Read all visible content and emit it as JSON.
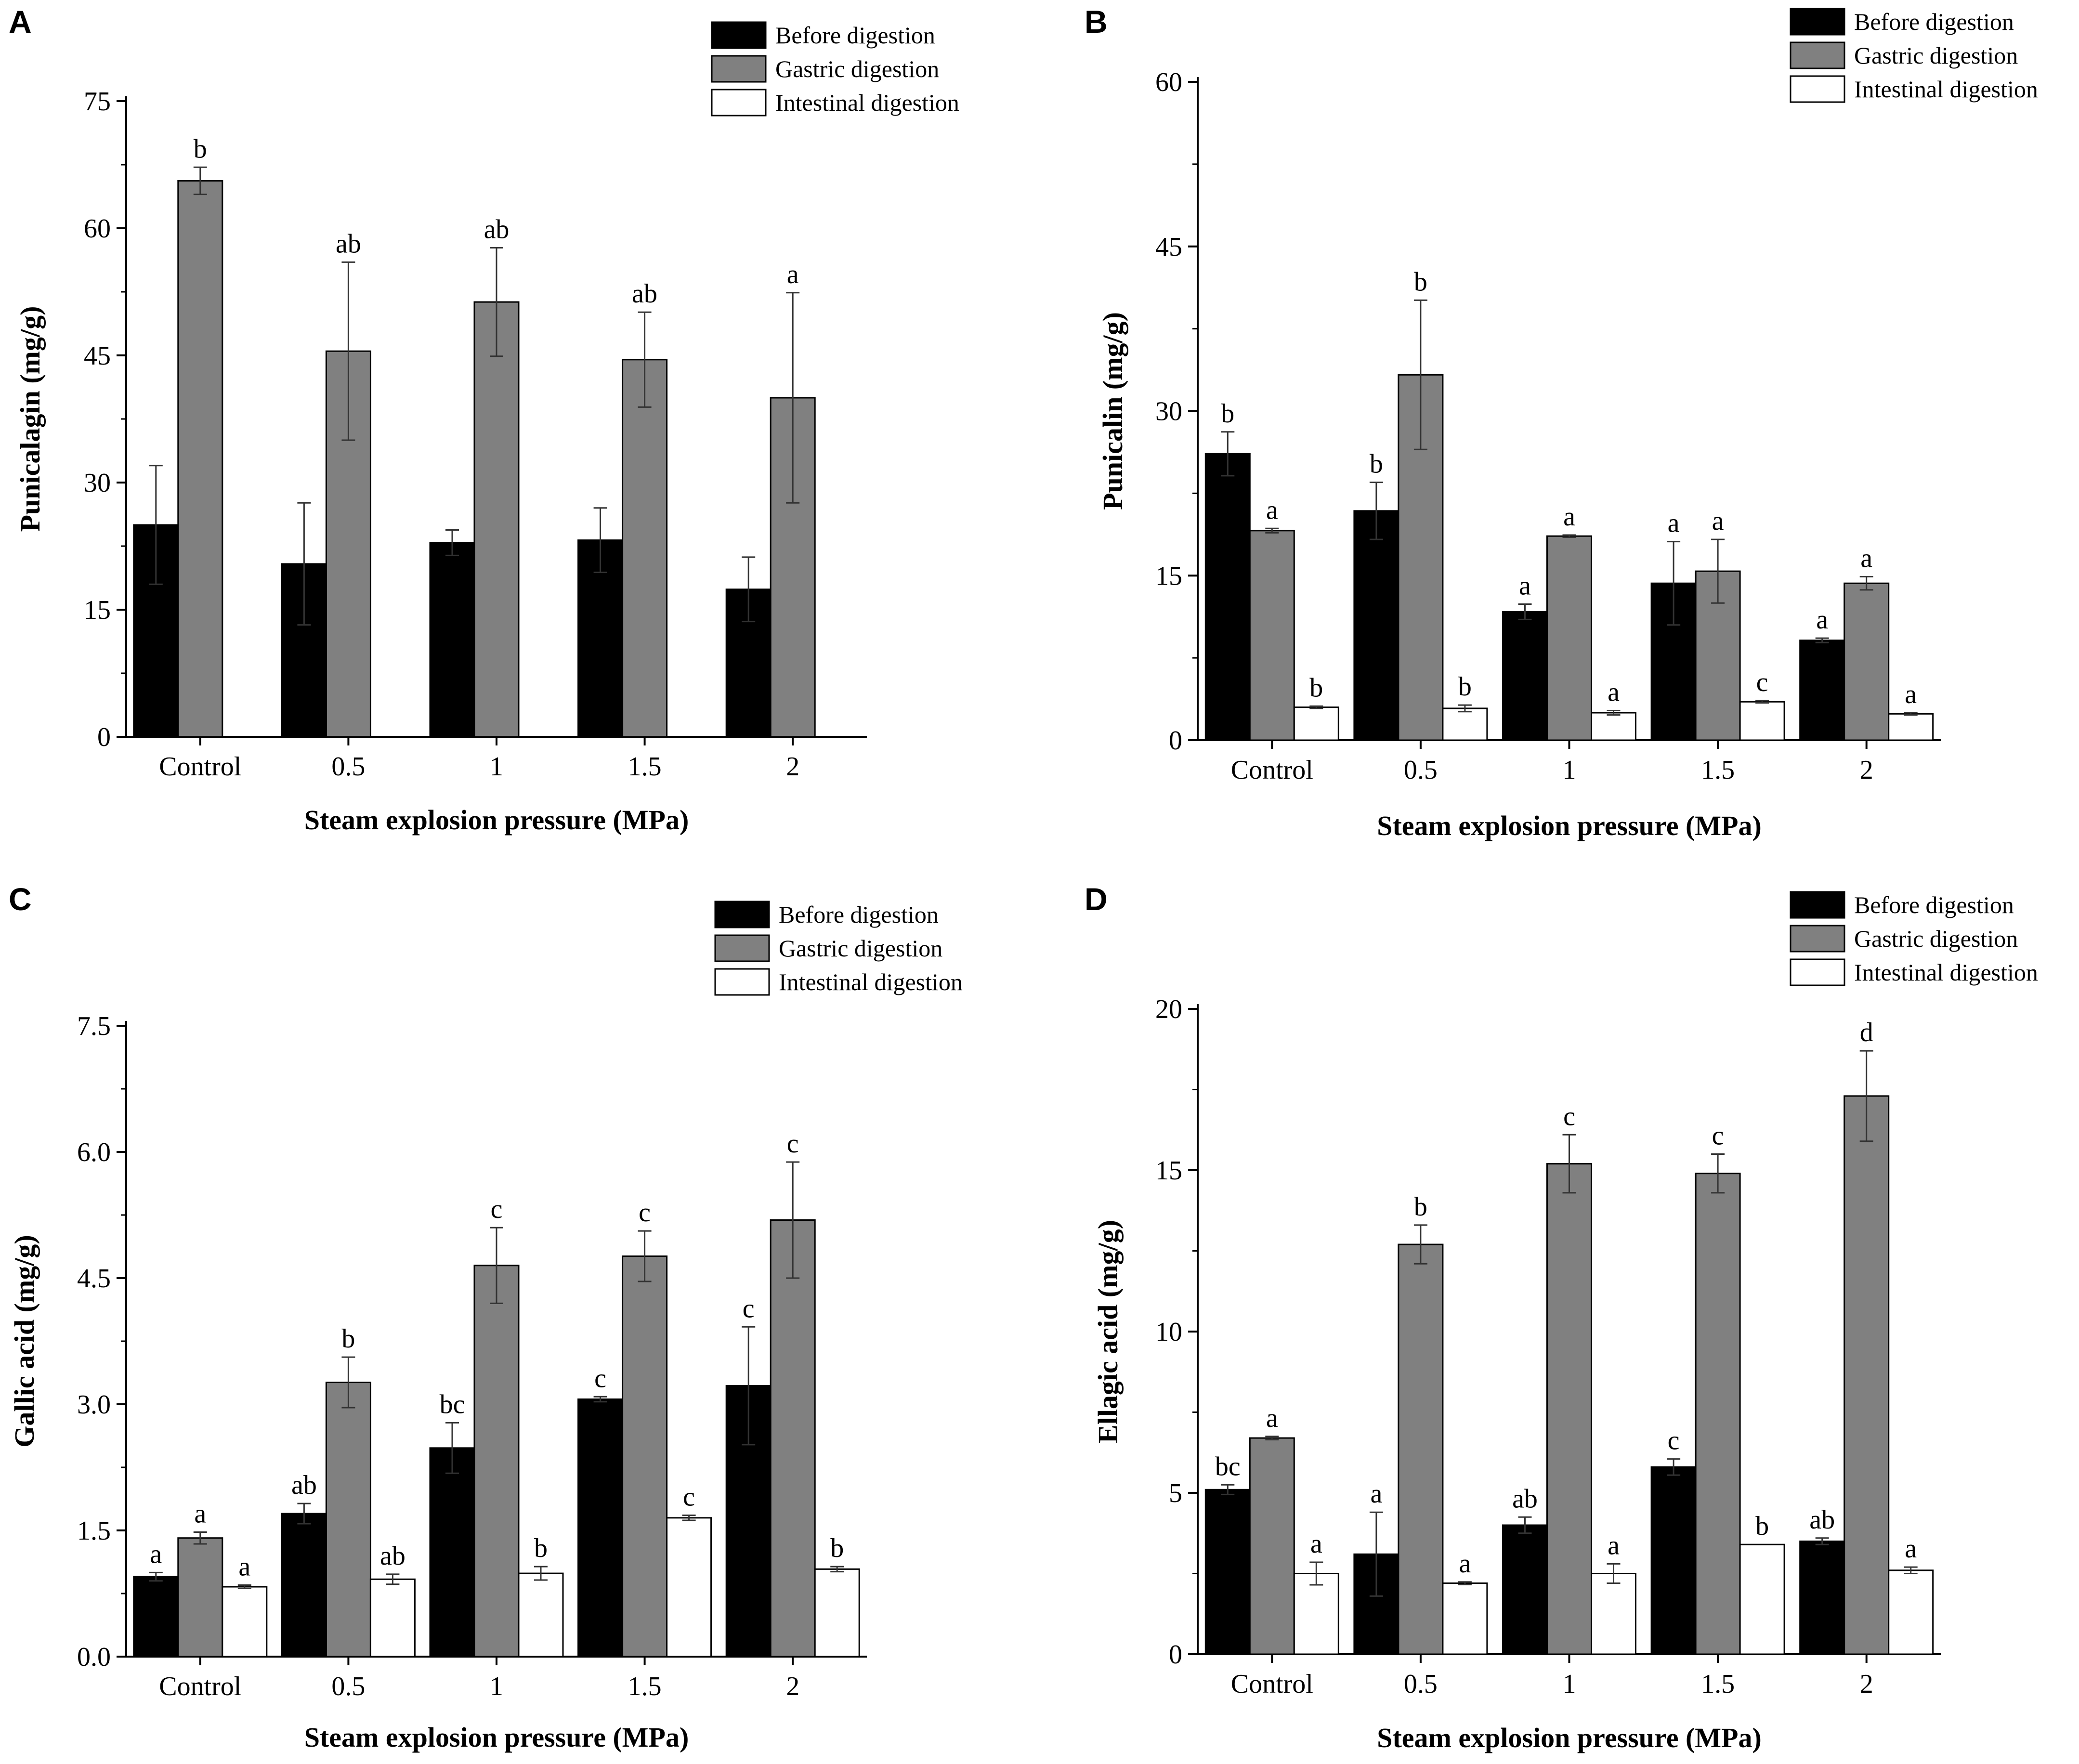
{
  "colors": {
    "before": "#000000",
    "gastric": "#808080",
    "intestinal": "#ffffff",
    "axis": "#000000"
  },
  "chart_data": [
    {
      "panel": "A",
      "type": "bar",
      "xlabel": "Steam explosion pressure (MPa)",
      "ylabel": "Punicalagin (mg/g)",
      "categories": [
        "Control",
        "0.5",
        "1",
        "1.5",
        "2"
      ],
      "ylim": [
        0,
        75
      ],
      "yticks": [
        0,
        15,
        30,
        45,
        60,
        75
      ],
      "ytick_labels": [
        "0",
        "15",
        "30",
        "45",
        "60",
        "75"
      ],
      "legend": [
        "Before digestion",
        "Gastric digestion",
        "Intestinal digestion"
      ],
      "series": [
        {
          "name": "Before digestion",
          "values": [
            25.0,
            20.4,
            22.9,
            23.2,
            17.4
          ],
          "errors": [
            7.0,
            7.2,
            1.5,
            3.8,
            3.8
          ],
          "labels": [
            "",
            "",
            "",
            "",
            ""
          ]
        },
        {
          "name": "Gastric digestion",
          "values": [
            65.6,
            45.5,
            51.3,
            44.5,
            40.0
          ],
          "errors": [
            1.6,
            10.5,
            6.4,
            5.6,
            12.4
          ],
          "labels": [
            "b",
            "ab",
            "ab",
            "ab",
            "a"
          ]
        },
        {
          "name": "Intestinal digestion",
          "values": [
            null,
            null,
            null,
            null,
            null
          ],
          "errors": [
            0,
            0,
            0,
            0,
            0
          ],
          "labels": [
            "",
            "",
            "",
            "",
            ""
          ]
        }
      ]
    },
    {
      "panel": "B",
      "type": "bar",
      "xlabel": "Steam explosion pressure (MPa)",
      "ylabel": "Punicalin (mg/g)",
      "categories": [
        "Control",
        "0.5",
        "1",
        "1.5",
        "2"
      ],
      "ylim": [
        0,
        60
      ],
      "yticks": [
        0,
        15,
        30,
        45,
        60
      ],
      "ytick_labels": [
        "0",
        "15",
        "30",
        "45",
        "60"
      ],
      "legend": [
        "Before digestion",
        "Gastric digestion",
        "Intestinal digestion"
      ],
      "series": [
        {
          "name": "Before digestion",
          "values": [
            26.1,
            20.9,
            11.7,
            14.3,
            9.1
          ],
          "errors": [
            2.0,
            2.6,
            0.7,
            3.8,
            0.2
          ],
          "labels": [
            "b",
            "b",
            "a",
            "a",
            "a"
          ]
        },
        {
          "name": "Gastric digestion",
          "values": [
            19.1,
            33.3,
            18.6,
            15.4,
            14.3
          ],
          "errors": [
            0.2,
            6.8,
            0.1,
            2.9,
            0.6
          ],
          "labels": [
            "a",
            "b",
            "a",
            "a",
            "a"
          ]
        },
        {
          "name": "Intestinal digestion",
          "values": [
            3.0,
            2.9,
            2.5,
            3.5,
            2.4
          ],
          "errors": [
            0.1,
            0.3,
            0.2,
            0.1,
            0.1
          ],
          "labels": [
            "b",
            "b",
            "a",
            "c",
            "a"
          ]
        }
      ]
    },
    {
      "panel": "C",
      "type": "bar",
      "xlabel": "Steam explosion pressure (MPa)",
      "ylabel": "Gallic acid (mg/g)",
      "categories": [
        "Control",
        "0.5",
        "1",
        "1.5",
        "2"
      ],
      "ylim": [
        0,
        7.5
      ],
      "yticks": [
        0,
        1.5,
        3.0,
        4.5,
        6.0,
        7.5
      ],
      "ytick_labels": [
        "0.0",
        "1.5",
        "3.0",
        "4.5",
        "6.0",
        "7.5"
      ],
      "legend": [
        "Before digestion",
        "Gastric digestion",
        "Intestinal digestion"
      ],
      "series": [
        {
          "name": "Before digestion",
          "values": [
            0.95,
            1.7,
            2.48,
            3.06,
            3.22
          ],
          "errors": [
            0.05,
            0.12,
            0.3,
            0.03,
            0.7
          ],
          "labels": [
            "a",
            "ab",
            "bc",
            "c",
            "c"
          ]
        },
        {
          "name": "Gastric digestion",
          "values": [
            1.41,
            3.26,
            4.65,
            4.76,
            5.19
          ],
          "errors": [
            0.07,
            0.3,
            0.45,
            0.3,
            0.69
          ],
          "labels": [
            "a",
            "b",
            "c",
            "c",
            "c"
          ]
        },
        {
          "name": "Intestinal digestion",
          "values": [
            0.83,
            0.92,
            0.99,
            1.65,
            1.04
          ],
          "errors": [
            0.02,
            0.06,
            0.08,
            0.03,
            0.03
          ],
          "labels": [
            "a",
            "ab",
            "b",
            "c",
            "b"
          ]
        }
      ]
    },
    {
      "panel": "D",
      "type": "bar",
      "xlabel": "Steam explosion pressure (MPa)",
      "ylabel": "Ellagic acid (mg/g)",
      "categories": [
        "Control",
        "0.5",
        "1",
        "1.5",
        "2"
      ],
      "ylim": [
        0,
        20
      ],
      "yticks": [
        0,
        5,
        10,
        15,
        20
      ],
      "ytick_labels": [
        "0",
        "5",
        "10",
        "15",
        "20"
      ],
      "legend": [
        "Before digestion",
        "Gastric digestion",
        "Intestinal digestion"
      ],
      "series": [
        {
          "name": "Before digestion",
          "values": [
            5.1,
            3.1,
            4.0,
            5.8,
            3.5
          ],
          "errors": [
            0.15,
            1.3,
            0.25,
            0.25,
            0.1
          ],
          "labels": [
            "bc",
            "a",
            "ab",
            "c",
            "ab"
          ]
        },
        {
          "name": "Gastric digestion",
          "values": [
            6.7,
            12.7,
            15.2,
            14.9,
            17.3
          ],
          "errors": [
            0.05,
            0.6,
            0.9,
            0.6,
            1.4
          ],
          "labels": [
            "a",
            "b",
            "c",
            "c",
            "d"
          ]
        },
        {
          "name": "Intestinal digestion",
          "values": [
            2.5,
            2.2,
            2.5,
            3.4,
            2.6
          ],
          "errors": [
            0.35,
            0.04,
            0.3,
            0.0,
            0.1
          ],
          "labels": [
            "a",
            "a",
            "a",
            "b",
            "a"
          ]
        }
      ]
    }
  ]
}
